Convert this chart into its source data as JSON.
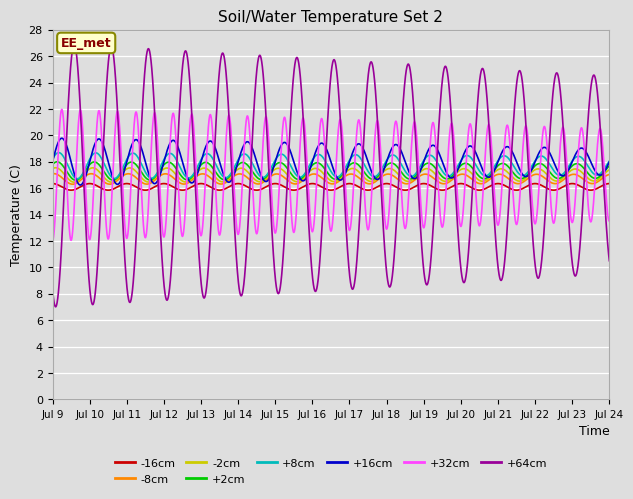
{
  "title": "Soil/Water Temperature Set 2",
  "xlabel": "Time",
  "ylabel": "Temperature (C)",
  "ylim": [
    0,
    28
  ],
  "xlim": [
    0,
    360
  ],
  "bg_color": "#dedede",
  "fig_color": "#dedede",
  "series": [
    {
      "label": "-16cm",
      "color": "#cc0000",
      "base": 16.1,
      "amp_start": 0.25,
      "amp_end": 0.25,
      "period": 24,
      "phase": 6
    },
    {
      "label": "-8cm",
      "color": "#ff8800",
      "base": 16.7,
      "amp_start": 0.4,
      "amp_end": 0.35,
      "period": 24,
      "phase": 5
    },
    {
      "label": "-2cm",
      "color": "#cccc00",
      "base": 17.0,
      "amp_start": 0.55,
      "amp_end": 0.45,
      "period": 24,
      "phase": 4
    },
    {
      "label": "+2cm",
      "color": "#00cc00",
      "base": 17.3,
      "amp_start": 0.7,
      "amp_end": 0.55,
      "period": 24,
      "phase": 3
    },
    {
      "label": "+8cm",
      "color": "#00bbbb",
      "base": 17.7,
      "amp_start": 1.0,
      "amp_end": 0.7,
      "period": 24,
      "phase": 2
    },
    {
      "label": "+16cm",
      "color": "#0000cc",
      "base": 18.0,
      "amp_start": 1.8,
      "amp_end": 1.0,
      "period": 24,
      "phase": 0
    },
    {
      "label": "+32cm",
      "color": "#ff44ff",
      "base": 17.0,
      "amp_start": 5.0,
      "amp_end": 3.5,
      "period": 12,
      "phase": -3
    },
    {
      "label": "+64cm",
      "color": "#990099",
      "base": 17.0,
      "amp_start": 10.0,
      "amp_end": 7.5,
      "period": 24,
      "phase": -8
    }
  ],
  "xtick_positions": [
    0,
    24,
    48,
    72,
    96,
    120,
    144,
    168,
    192,
    216,
    240,
    264,
    288,
    312,
    336,
    360
  ],
  "xtick_labels": [
    "Jul 9",
    "Jul 10",
    "Jul 11",
    "Jul 12",
    "Jul 13",
    "Jul 14",
    "Jul 15",
    "Jul 16",
    "Jul 17",
    "Jul 18",
    "Jul 19",
    "Jul 20",
    "Jul 21",
    "Jul 22",
    "Jul 23",
    "Jul 24"
  ],
  "ytick_positions": [
    0,
    2,
    4,
    6,
    8,
    10,
    12,
    14,
    16,
    18,
    20,
    22,
    24,
    26,
    28
  ],
  "annotation_text": "EE_met",
  "annotation_color": "#880000",
  "annotation_bg": "#ffffcc",
  "annotation_border": "#888800",
  "legend_row1": [
    "-16cm",
    "-8cm",
    "-2cm",
    "+2cm",
    "+8cm",
    "+16cm"
  ],
  "legend_row2": [
    "+32cm",
    "+64cm"
  ],
  "legend_colors_row1": [
    "#cc0000",
    "#ff8800",
    "#cccc00",
    "#00cc00",
    "#00bbbb",
    "#0000cc"
  ],
  "legend_colors_row2": [
    "#ff44ff",
    "#990099"
  ]
}
